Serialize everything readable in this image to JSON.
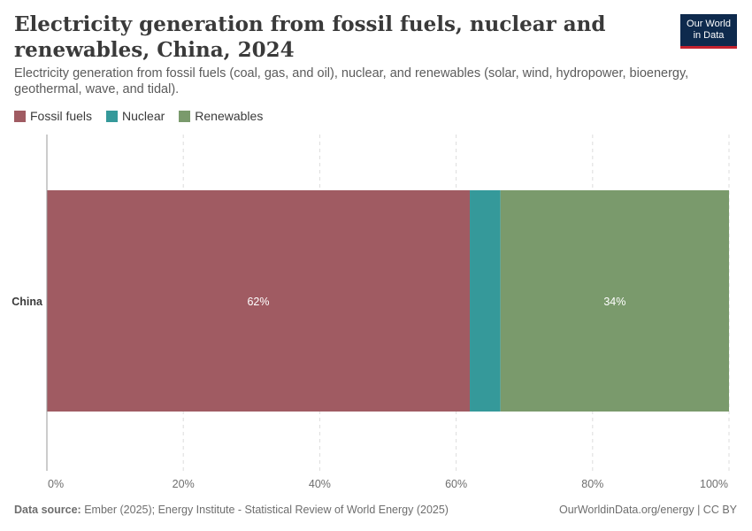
{
  "header": {
    "title": "Electricity generation from fossil fuels, nuclear and renewables, China, 2024",
    "subtitle": "Electricity generation from fossil fuels (coal, gas, and oil), nuclear, and renewables (solar, wind, hydropower, bioenergy, geothermal, wave, and tidal).",
    "logo_line1": "Our World",
    "logo_line2": "in Data"
  },
  "footer": {
    "source_label": "Data source:",
    "source_text": "Ember (2025); Energy Institute - Statistical Review of World Energy (2025)",
    "credit": "OurWorldinData.org/energy | CC BY"
  },
  "colors": {
    "fossil": "#a05b62",
    "nuclear": "#35999a",
    "renewables": "#7a9a6c",
    "logo_bg": "#0e2a4d",
    "logo_accent": "#c4222e"
  },
  "chart_data": {
    "type": "bar",
    "orientation": "horizontal",
    "stacked": true,
    "categories": [
      "China"
    ],
    "series": [
      {
        "name": "Fossil fuels",
        "values": [
          62
        ],
        "label": "62%"
      },
      {
        "name": "Nuclear",
        "values": [
          4.5
        ],
        "label": ""
      },
      {
        "name": "Renewables",
        "values": [
          33.5
        ],
        "label": "34%"
      }
    ],
    "xlim": [
      0,
      100
    ],
    "x_ticks": [
      "0%",
      "20%",
      "40%",
      "60%",
      "80%",
      "100%"
    ],
    "grid": "vertical dashed",
    "legend_position": "top-left"
  }
}
